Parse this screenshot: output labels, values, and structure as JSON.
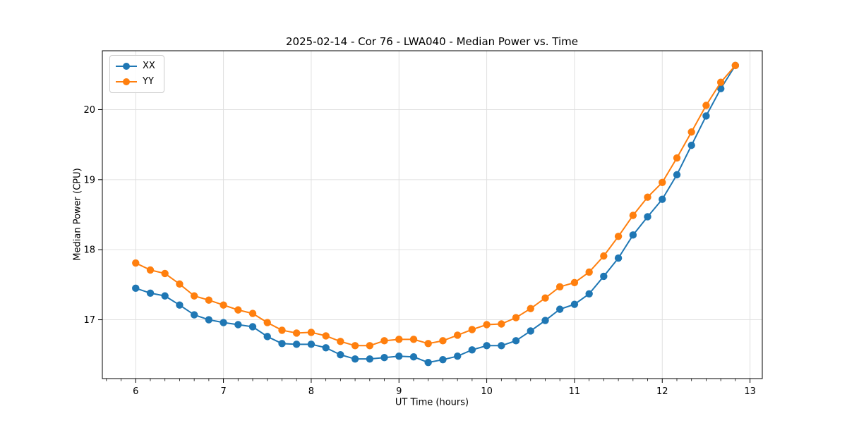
{
  "figure": {
    "title": "2025-02-14 - Cor 76 - LWA040 - Median Power vs. Time",
    "xlabel": "UT Time (hours)",
    "ylabel": "Median Power (CPU)"
  },
  "legend": {
    "position": "upper-left",
    "entries": [
      {
        "label": "XX",
        "color": "#1f77b4"
      },
      {
        "label": "YY",
        "color": "#ff7f0e"
      }
    ]
  },
  "chart_data": {
    "type": "line",
    "title": "2025-02-14 - Cor 76 - LWA040 - Median Power vs. Time",
    "xlabel": "UT Time (hours)",
    "ylabel": "Median Power (CPU)",
    "xlim": [
      5.62,
      13.14
    ],
    "ylim": [
      16.16,
      20.84
    ],
    "xticks": [
      6,
      7,
      8,
      9,
      10,
      11,
      12,
      13
    ],
    "yticks": [
      17,
      18,
      19,
      20
    ],
    "minor_xtick_step": 0.1667,
    "grid": true,
    "grid_color": "#e0e0e0",
    "marker": "circle",
    "legend_position": "upper-left",
    "x": [
      6.0,
      6.167,
      6.333,
      6.5,
      6.667,
      6.833,
      7.0,
      7.167,
      7.333,
      7.5,
      7.667,
      7.833,
      8.0,
      8.167,
      8.333,
      8.5,
      8.667,
      8.833,
      9.0,
      9.167,
      9.333,
      9.5,
      9.667,
      9.833,
      10.0,
      10.167,
      10.333,
      10.5,
      10.667,
      10.833,
      11.0,
      11.167,
      11.333,
      11.5,
      11.667,
      11.833,
      12.0,
      12.167,
      12.333,
      12.5,
      12.667,
      12.833
    ],
    "series": [
      {
        "name": "XX",
        "color": "#1f77b4",
        "values": [
          17.45,
          17.38,
          17.34,
          17.21,
          17.07,
          17.0,
          16.96,
          16.93,
          16.9,
          16.76,
          16.66,
          16.65,
          16.65,
          16.6,
          16.5,
          16.44,
          16.44,
          16.46,
          16.48,
          16.47,
          16.39,
          16.43,
          16.48,
          16.57,
          16.63,
          16.63,
          16.7,
          16.84,
          16.99,
          17.15,
          17.22,
          17.37,
          17.62,
          17.88,
          18.21,
          18.47,
          18.72,
          19.07,
          19.49,
          19.91,
          20.3,
          20.63
        ]
      },
      {
        "name": "YY",
        "color": "#ff7f0e",
        "values": [
          17.81,
          17.71,
          17.66,
          17.51,
          17.34,
          17.28,
          17.21,
          17.14,
          17.09,
          16.96,
          16.85,
          16.81,
          16.82,
          16.77,
          16.69,
          16.63,
          16.63,
          16.7,
          16.72,
          16.72,
          16.66,
          16.7,
          16.78,
          16.86,
          16.93,
          16.94,
          17.03,
          17.16,
          17.31,
          17.47,
          17.53,
          17.68,
          17.91,
          18.19,
          18.49,
          18.75,
          18.96,
          19.31,
          19.68,
          20.06,
          20.39,
          20.63
        ]
      }
    ]
  }
}
